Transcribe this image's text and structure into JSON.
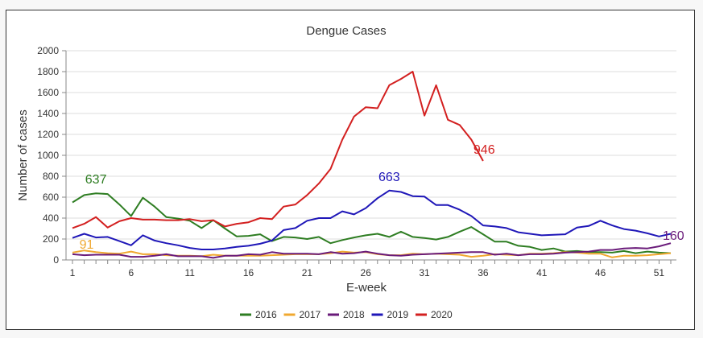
{
  "chart_data": {
    "type": "line",
    "title": "Dengue Cases",
    "xlabel": "E-week",
    "ylabel": "Number of cases",
    "ylim": [
      0,
      2000
    ],
    "yticks": [
      0,
      200,
      400,
      600,
      800,
      1000,
      1200,
      1400,
      1600,
      1800,
      2000
    ],
    "xlim": [
      1,
      52
    ],
    "xticks": [
      1,
      6,
      11,
      16,
      21,
      26,
      31,
      36,
      41,
      46,
      51
    ],
    "grid": true,
    "legend_position": "bottom",
    "series": [
      {
        "name": "2016",
        "color": "#2e7d22",
        "x": [
          1,
          2,
          3,
          4,
          5,
          6,
          7,
          8,
          9,
          10,
          11,
          12,
          13,
          14,
          15,
          16,
          17,
          18,
          19,
          20,
          21,
          22,
          23,
          24,
          25,
          26,
          27,
          28,
          29,
          30,
          31,
          32,
          33,
          34,
          35,
          36,
          37,
          38,
          39,
          40,
          41,
          42,
          43,
          44,
          45,
          46,
          47,
          48,
          49,
          50,
          51,
          52
        ],
        "values": [
          550,
          620,
          637,
          630,
          530,
          420,
          595,
          510,
          410,
          395,
          375,
          305,
          380,
          300,
          225,
          230,
          245,
          180,
          220,
          215,
          200,
          220,
          160,
          190,
          215,
          235,
          250,
          220,
          270,
          220,
          210,
          195,
          220,
          270,
          315,
          245,
          175,
          175,
          135,
          125,
          95,
          110,
          80,
          85,
          75,
          75,
          70,
          85,
          65,
          80,
          70,
          65
        ],
        "annotation": {
          "text": "637",
          "week": 3
        }
      },
      {
        "name": "2017",
        "color": "#f0a830",
        "x": [
          1,
          2,
          3,
          4,
          5,
          6,
          7,
          8,
          9,
          10,
          11,
          12,
          13,
          14,
          15,
          16,
          17,
          18,
          19,
          20,
          21,
          22,
          23,
          24,
          25,
          26,
          27,
          28,
          29,
          30,
          31,
          32,
          33,
          34,
          35,
          36,
          37,
          38,
          39,
          40,
          41,
          42,
          43,
          44,
          45,
          46,
          47,
          48,
          49,
          50,
          51,
          52
        ],
        "values": [
          70,
          91,
          75,
          65,
          60,
          80,
          55,
          55,
          45,
          40,
          40,
          35,
          50,
          40,
          40,
          40,
          40,
          45,
          50,
          55,
          55,
          55,
          65,
          80,
          70,
          75,
          55,
          45,
          45,
          60,
          55,
          60,
          55,
          50,
          30,
          40,
          55,
          50,
          45,
          60,
          60,
          65,
          75,
          70,
          60,
          60,
          25,
          40,
          40,
          45,
          55,
          65
        ],
        "annotation": {
          "text": "91",
          "week": 2
        }
      },
      {
        "name": "2018",
        "color": "#6a1b7a",
        "x": [
          1,
          2,
          3,
          4,
          5,
          6,
          7,
          8,
          9,
          10,
          11,
          12,
          13,
          14,
          15,
          16,
          17,
          18,
          19,
          20,
          21,
          22,
          23,
          24,
          25,
          26,
          27,
          28,
          29,
          30,
          31,
          32,
          33,
          34,
          35,
          36,
          37,
          38,
          39,
          40,
          41,
          42,
          43,
          44,
          45,
          46,
          47,
          48,
          49,
          50,
          51,
          52
        ],
        "values": [
          55,
          45,
          50,
          50,
          50,
          30,
          30,
          40,
          55,
          35,
          35,
          35,
          20,
          40,
          40,
          55,
          50,
          75,
          60,
          60,
          60,
          55,
          75,
          60,
          65,
          80,
          60,
          45,
          40,
          50,
          55,
          60,
          65,
          70,
          75,
          75,
          50,
          60,
          45,
          55,
          55,
          60,
          70,
          75,
          80,
          95,
          95,
          110,
          115,
          110,
          130,
          160
        ],
        "annotation": {
          "text": "160",
          "week": 52
        }
      },
      {
        "name": "2019",
        "color": "#1f17b8",
        "x": [
          1,
          2,
          3,
          4,
          5,
          6,
          7,
          8,
          9,
          10,
          11,
          12,
          13,
          14,
          15,
          16,
          17,
          18,
          19,
          20,
          21,
          22,
          23,
          24,
          25,
          26,
          27,
          28,
          29,
          30,
          31,
          32,
          33,
          34,
          35,
          36,
          37,
          38,
          39,
          40,
          41,
          42,
          43,
          44,
          45,
          46,
          47,
          48,
          49,
          50,
          51,
          52
        ],
        "values": [
          210,
          250,
          215,
          220,
          180,
          140,
          235,
          185,
          160,
          140,
          115,
          100,
          100,
          110,
          125,
          135,
          155,
          185,
          285,
          305,
          375,
          400,
          400,
          465,
          435,
          495,
          590,
          663,
          650,
          610,
          605,
          525,
          525,
          480,
          420,
          330,
          320,
          305,
          265,
          250,
          235,
          240,
          245,
          310,
          325,
          375,
          330,
          295,
          280,
          255,
          225,
          250
        ],
        "annotation": {
          "text": "663",
          "week": 28
        }
      },
      {
        "name": "2020",
        "color": "#d32020",
        "x": [
          1,
          2,
          3,
          4,
          5,
          6,
          7,
          8,
          9,
          10,
          11,
          12,
          13,
          14,
          15,
          16,
          17,
          18,
          19,
          20,
          21,
          22,
          23,
          24,
          25,
          26,
          27,
          28,
          29,
          30,
          31,
          32,
          33,
          34,
          35,
          36
        ],
        "values": [
          305,
          345,
          410,
          310,
          370,
          400,
          385,
          385,
          380,
          380,
          390,
          370,
          380,
          320,
          345,
          360,
          400,
          390,
          510,
          530,
          620,
          730,
          870,
          1150,
          1370,
          1460,
          1450,
          1670,
          1730,
          1800,
          1380,
          1670,
          1340,
          1290,
          1150,
          946
        ],
        "annotation": {
          "text": "946",
          "week": 36
        }
      }
    ]
  }
}
